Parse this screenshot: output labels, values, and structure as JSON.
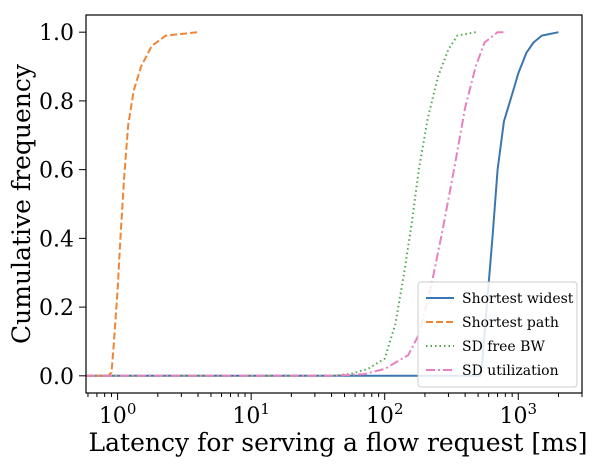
{
  "chart_data": {
    "type": "line",
    "xlabel": "Latency for serving a flow request [ms]",
    "ylabel": "Cumulative frequency",
    "xscale": "log",
    "xlim": [
      0.58,
      3000
    ],
    "ylim": [
      -0.05,
      1.05
    ],
    "x_ticks": [
      {
        "value": 1,
        "label": "10⁰",
        "base": "10",
        "exp": "0"
      },
      {
        "value": 10,
        "label": "10¹",
        "base": "10",
        "exp": "1"
      },
      {
        "value": 100,
        "label": "10²",
        "base": "10",
        "exp": "2"
      },
      {
        "value": 1000,
        "label": "10³",
        "base": "10",
        "exp": "3"
      }
    ],
    "y_ticks": [
      {
        "value": 0.0,
        "label": "0.0"
      },
      {
        "value": 0.2,
        "label": "0.2"
      },
      {
        "value": 0.4,
        "label": "0.4"
      },
      {
        "value": 0.6,
        "label": "0.6"
      },
      {
        "value": 0.8,
        "label": "0.8"
      },
      {
        "value": 1.0,
        "label": "1.0"
      }
    ],
    "grid": false,
    "legend_position": "lower-right",
    "series": [
      {
        "name": "Shortest widest",
        "color": "#3a76af",
        "style": "solid",
        "points": [
          [
            0.58,
            0
          ],
          [
            520,
            0
          ],
          [
            540,
            0.05
          ],
          [
            580,
            0.2
          ],
          [
            640,
            0.4
          ],
          [
            700,
            0.6
          ],
          [
            780,
            0.74
          ],
          [
            900,
            0.82
          ],
          [
            1000,
            0.88
          ],
          [
            1150,
            0.94
          ],
          [
            1300,
            0.97
          ],
          [
            1500,
            0.99
          ],
          [
            2000,
            1.0
          ]
        ]
      },
      {
        "name": "Shortest path",
        "color": "#ef8636",
        "style": "dashed",
        "points": [
          [
            0.58,
            0
          ],
          [
            0.85,
            0
          ],
          [
            0.9,
            0.01
          ],
          [
            0.94,
            0.1
          ],
          [
            1.0,
            0.25
          ],
          [
            1.05,
            0.4
          ],
          [
            1.12,
            0.58
          ],
          [
            1.2,
            0.73
          ],
          [
            1.32,
            0.83
          ],
          [
            1.5,
            0.9
          ],
          [
            1.8,
            0.96
          ],
          [
            2.3,
            0.99
          ],
          [
            4.0,
            1.0
          ]
        ]
      },
      {
        "name": "SD free BW",
        "color": "#50a84e",
        "style": "dotted",
        "points": [
          [
            0.58,
            0
          ],
          [
            40,
            0
          ],
          [
            55,
            0.005
          ],
          [
            75,
            0.02
          ],
          [
            100,
            0.05
          ],
          [
            120,
            0.15
          ],
          [
            140,
            0.3
          ],
          [
            160,
            0.45
          ],
          [
            180,
            0.6
          ],
          [
            210,
            0.75
          ],
          [
            250,
            0.87
          ],
          [
            300,
            0.95
          ],
          [
            350,
            0.99
          ],
          [
            480,
            1.0
          ]
        ]
      },
      {
        "name": "SD utilization",
        "color": "#e880bf",
        "style": "dashdot",
        "points": [
          [
            0.58,
            0
          ],
          [
            40,
            0
          ],
          [
            70,
            0.005
          ],
          [
            100,
            0.02
          ],
          [
            150,
            0.06
          ],
          [
            180,
            0.12
          ],
          [
            220,
            0.25
          ],
          [
            270,
            0.42
          ],
          [
            330,
            0.6
          ],
          [
            400,
            0.78
          ],
          [
            480,
            0.9
          ],
          [
            560,
            0.97
          ],
          [
            700,
            1.0
          ],
          [
            800,
            1.0
          ]
        ]
      }
    ]
  }
}
